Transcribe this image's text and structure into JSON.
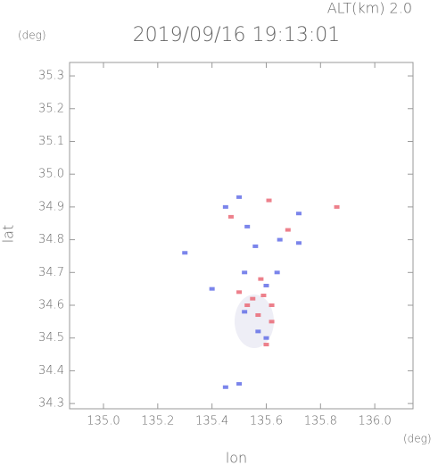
{
  "chart_data": {
    "type": "scatter",
    "title": "2019/09/16 19:13:01",
    "top_label": "ALT(km)  2.0",
    "y_unit": "(deg)",
    "x_unit": "(deg)",
    "x_label": "lon",
    "y_label": "lat",
    "xlim": [
      134.875,
      136.141
    ],
    "ylim": [
      34.284,
      35.341
    ],
    "xticks": [
      {
        "value": 135.0,
        "label": "135.0"
      },
      135.2,
      135.4,
      135.6,
      135.8,
      {
        "value": 136.0,
        "label": "136.0"
      }
    ],
    "yticks": [
      34.3,
      34.4,
      34.5,
      34.6,
      34.7,
      34.8,
      34.9,
      {
        "value": 35.0,
        "label": "35.0"
      },
      35.1,
      35.2,
      35.3
    ],
    "series": [
      {
        "color": "#e8606e",
        "x": [
          135.61,
          135.86,
          135.58,
          135.5,
          135.55,
          135.62,
          135.57,
          135.62,
          135.6,
          135.47,
          135.68,
          135.53,
          135.59
        ],
        "y": [
          34.92,
          34.9,
          34.68,
          34.64,
          34.62,
          34.6,
          34.57,
          34.55,
          34.48,
          34.87,
          34.83,
          34.6,
          34.63
        ]
      },
      {
        "color": "#5a66e6",
        "x": [
          135.45,
          135.5,
          135.72,
          135.53,
          135.65,
          135.52,
          135.6,
          135.52,
          135.57,
          135.6,
          135.45,
          135.5,
          135.3,
          135.4,
          135.72,
          135.64,
          135.56
        ],
        "y": [
          34.9,
          34.93,
          34.88,
          34.84,
          34.8,
          34.7,
          34.66,
          34.58,
          34.52,
          34.5,
          34.35,
          34.36,
          34.76,
          34.65,
          34.79,
          34.7,
          34.78
        ]
      }
    ]
  }
}
